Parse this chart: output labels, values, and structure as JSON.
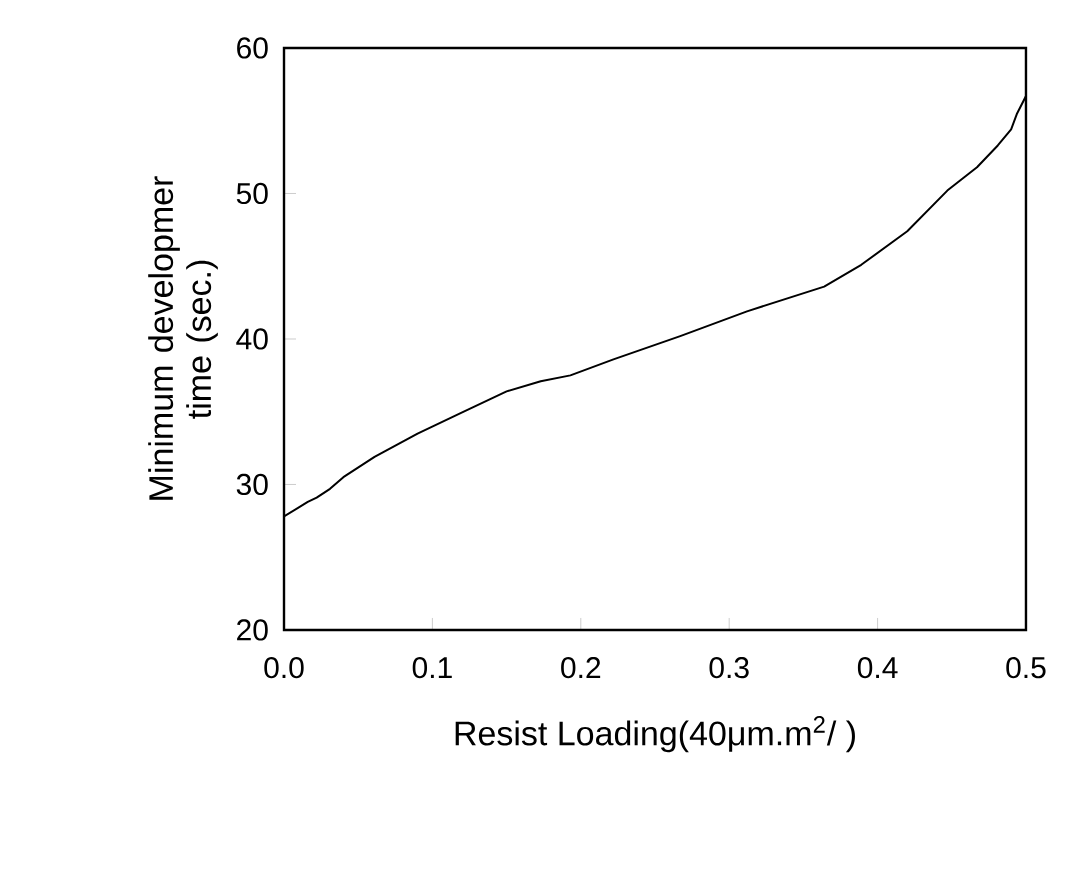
{
  "chart_data": {
    "type": "line",
    "xlabel": "Resist Loading(40μm.m$^{2}$/    )",
    "ylabel": "Minimum developmer time (sec.)",
    "xlim": [
      0,
      0.5
    ],
    "ylim": [
      20,
      60
    ],
    "xticks": [
      {
        "value": 0,
        "label": "0.0"
      },
      0.1,
      0.2,
      0.3,
      0.4,
      0.5
    ],
    "yticks": [
      20,
      30,
      40,
      50,
      60
    ],
    "color": "#000000",
    "marker": "none",
    "line_style": "solid",
    "x": [
      0,
      0.016,
      0.022,
      0.031,
      0.04,
      0.061,
      0.09,
      0.119,
      0.15,
      0.173,
      0.193,
      0.222,
      0.267,
      0.312,
      0.364,
      0.389,
      0.42,
      0.447,
      0.467,
      0.481,
      0.49,
      0.494,
      0.5
    ],
    "values": [
      27.8,
      28.8,
      29.1,
      29.7,
      30.5,
      31.9,
      33.5,
      34.9,
      36.4,
      37.1,
      37.5,
      38.6,
      40.2,
      41.9,
      43.6,
      45.1,
      47.4,
      50.2,
      51.8,
      53.3,
      54.4,
      55.5,
      56.7
    ]
  }
}
